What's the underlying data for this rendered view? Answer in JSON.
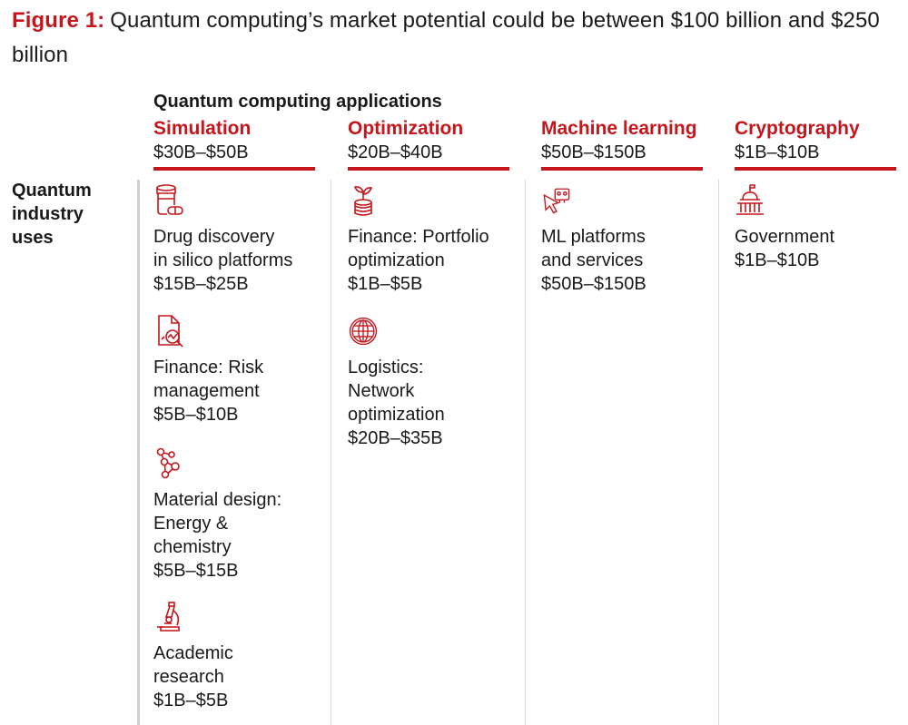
{
  "figure": {
    "prefix": "Figure 1:",
    "title": "Quantum computing’s market potential could be between $100 billion and $250 billion"
  },
  "applications_heading": "Quantum computing applications",
  "uses_label": "Quantum\nindustry\nuses",
  "columns": [
    {
      "name": "Simulation",
      "value": "$30B–$50B",
      "items": [
        {
          "icon": "pill-bottle-icon",
          "label": "Drug discovery\nin silico platforms",
          "value": "$15B–$25B"
        },
        {
          "icon": "document-chart-icon",
          "label": "Finance: Risk\nmanagement",
          "value": "$5B–$10B"
        },
        {
          "icon": "molecule-icon",
          "label": "Material design:\nEnergy &\nchemistry",
          "value": "$5B–$15B"
        },
        {
          "icon": "microscope-icon",
          "label": "Academic\nresearch",
          "value": "$1B–$5B"
        }
      ]
    },
    {
      "name": "Optimization",
      "value": "$20B–$40B",
      "items": [
        {
          "icon": "coin-plant-icon",
          "label": "Finance: Portfolio\noptimization",
          "value": "$1B–$5B"
        },
        {
          "icon": "globe-icon",
          "label": "Logistics:\nNetwork\noptimization",
          "value": "$20B–$35B"
        }
      ]
    },
    {
      "name": "Machine learning",
      "value": "$50B–$150B",
      "items": [
        {
          "icon": "robot-cursor-icon",
          "label": "ML platforms\nand services",
          "value": "$50B–$150B"
        }
      ]
    },
    {
      "name": "Cryptography",
      "value": "$1B–$10B",
      "items": [
        {
          "icon": "capitol-building-icon",
          "label": "Government",
          "value": "$1B–$10B"
        }
      ]
    }
  ],
  "colors": {
    "accent": "#c4161c",
    "text": "#1a1a1a",
    "divider": "#d9d9d9"
  }
}
